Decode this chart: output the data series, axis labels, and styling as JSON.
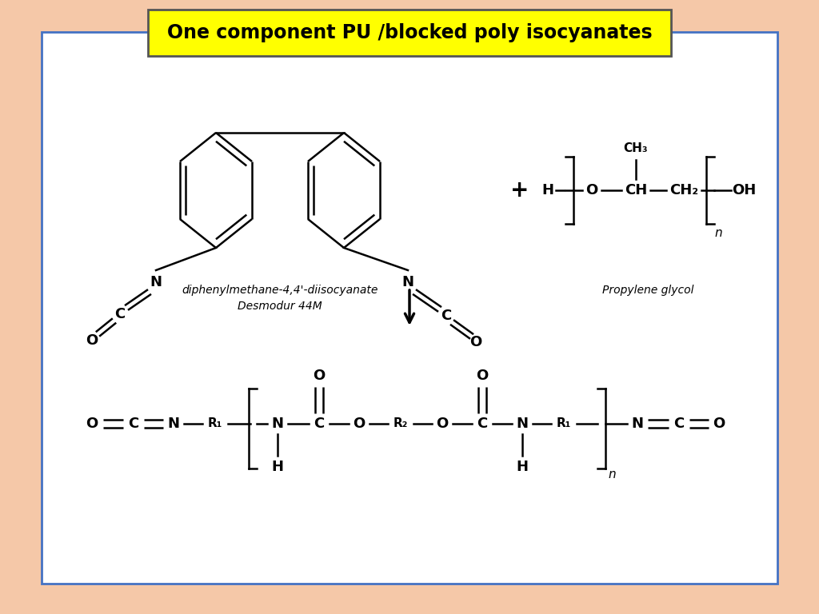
{
  "title": "One component PU /blocked poly isocyanates",
  "title_bg": "#ffff00",
  "title_border": "#4472c4",
  "bg_color": "#f5c8a8",
  "inner_bg": "#ffffff",
  "inner_border": "#4472c4",
  "label1": "diphenylmethane-4,4'-diisocyanate",
  "label2": "Desmodur 44M",
  "label3": "Propylene glycol"
}
